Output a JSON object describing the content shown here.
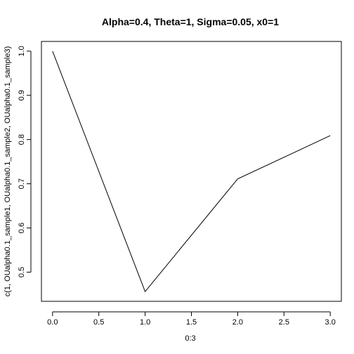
{
  "chart_data": {
    "type": "line",
    "title": "Alpha=0.4, Theta=1, Sigma=0.05, x0=1",
    "xlabel": "0:3",
    "ylabel": "c(1, OUalpha0.1_sample1, OUalpha0.1_sample2, OUalpha0.1_sample3)",
    "x": [
      0,
      1,
      2,
      3
    ],
    "series": [
      {
        "values": [
          1.0,
          0.456,
          0.711,
          0.809
        ]
      }
    ],
    "xlim": [
      -0.12,
      3.12
    ],
    "ylim": [
      0.434,
      1.022
    ],
    "x_ticks": [
      0.0,
      0.5,
      1.0,
      1.5,
      2.0,
      2.5,
      3.0
    ],
    "x_tick_labels": [
      "0.0",
      "0.5",
      "1.0",
      "1.5",
      "2.0",
      "2.5",
      "3.0"
    ],
    "y_ticks": [
      0.5,
      0.6,
      0.7,
      0.8,
      0.9,
      1.0
    ],
    "y_tick_labels": [
      "0.5",
      "0.6",
      "0.7",
      "0.8",
      "0.9",
      "1.0"
    ],
    "grid": false,
    "colors": {
      "line": "#000000",
      "background": "#ffffff"
    }
  }
}
